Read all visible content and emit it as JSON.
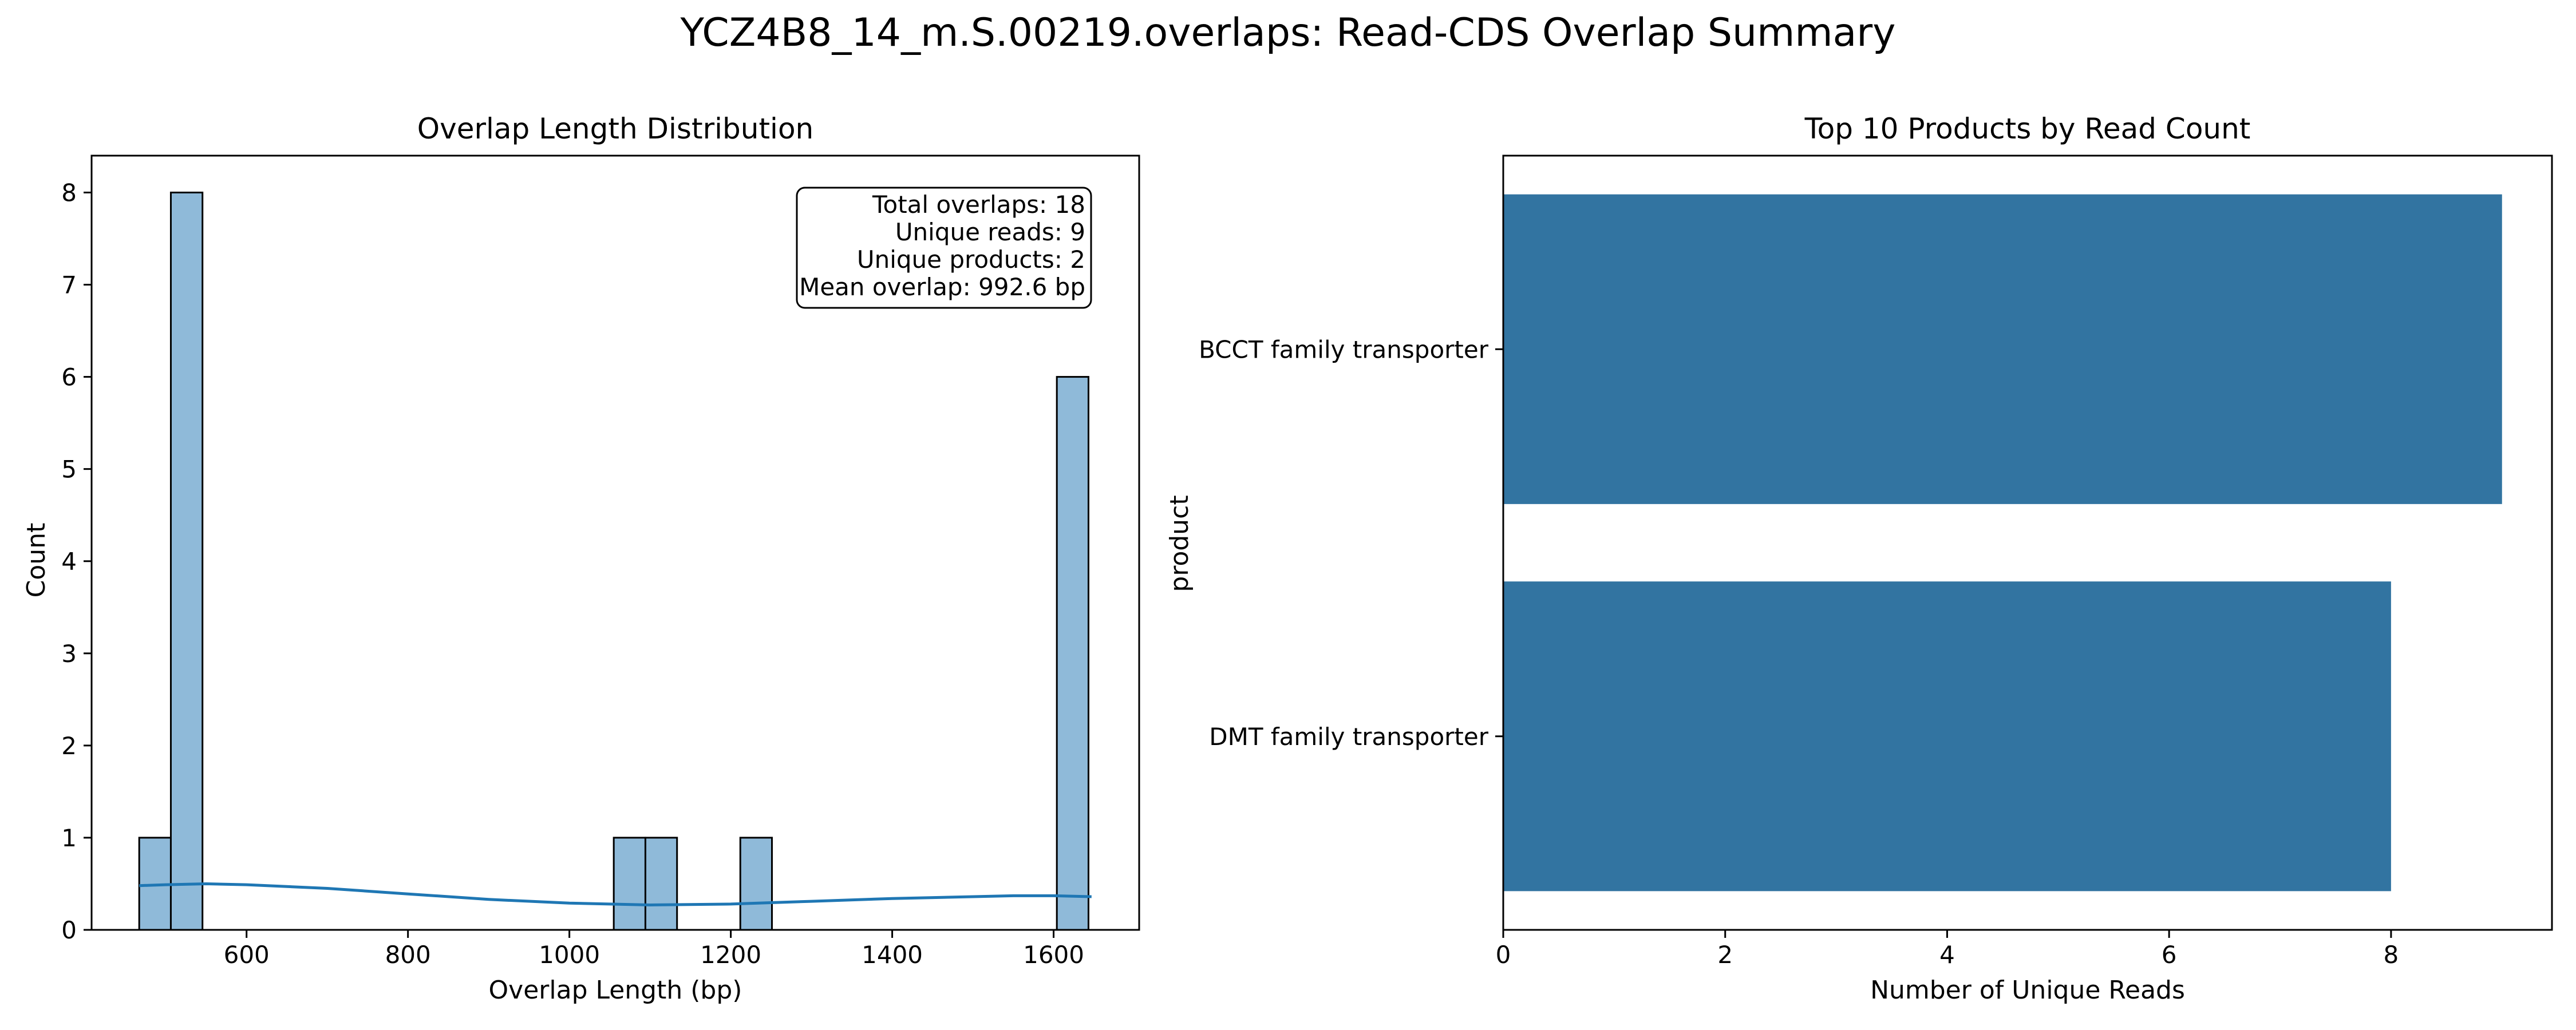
{
  "figure": {
    "suptitle": "YCZ4B8_14_m.S.00219.overlaps: Read-CDS Overlap Summary"
  },
  "chart_data": [
    {
      "type": "bar",
      "title": "Overlap Length Distribution",
      "xlabel": "Overlap Length (bp)",
      "ylabel": "Count",
      "xlim": [
        408,
        1706
      ],
      "ylim": [
        0,
        8.4
      ],
      "xticks": [
        600,
        800,
        1000,
        1200,
        1400,
        1600
      ],
      "yticks": [
        0,
        1,
        2,
        3,
        4,
        5,
        6,
        7,
        8
      ],
      "grid": false,
      "bin_width": 39.2,
      "bins": [
        {
          "x0": 467.0,
          "x1": 506.2,
          "count": 1
        },
        {
          "x0": 506.2,
          "x1": 545.4,
          "count": 8
        },
        {
          "x0": 1055.0,
          "x1": 1094.2,
          "count": 1
        },
        {
          "x0": 1094.2,
          "x1": 1133.4,
          "count": 1
        },
        {
          "x0": 1211.8,
          "x1": 1251.0,
          "count": 1
        },
        {
          "x0": 1604.0,
          "x1": 1643.2,
          "count": 6
        }
      ],
      "kde": {
        "x": [
          467,
          500,
          550,
          600,
          700,
          800,
          900,
          1000,
          1100,
          1200,
          1300,
          1400,
          1500,
          1550,
          1600,
          1647
        ],
        "y": [
          0.48,
          0.49,
          0.5,
          0.49,
          0.45,
          0.39,
          0.33,
          0.29,
          0.27,
          0.28,
          0.31,
          0.34,
          0.36,
          0.37,
          0.37,
          0.36
        ]
      },
      "bar_color": "#8fbad9",
      "kde_color": "#1f77b4",
      "stats_box": {
        "lines": [
          "Total overlaps: 18",
          "Unique reads: 9",
          "Unique products: 2",
          "Mean overlap: 992.6 bp"
        ],
        "placement": "top-right"
      }
    },
    {
      "type": "bar",
      "orientation": "horizontal",
      "title": "Top 10 Products by Read Count",
      "xlabel": "Number of Unique Reads",
      "ylabel": "product",
      "xlim": [
        0,
        9.45
      ],
      "xticks": [
        0,
        2,
        4,
        6,
        8
      ],
      "grid": false,
      "categories": [
        "BCCT family transporter",
        "DMT family transporter"
      ],
      "values": [
        9,
        8
      ],
      "bar_color": "#3274a1"
    }
  ]
}
